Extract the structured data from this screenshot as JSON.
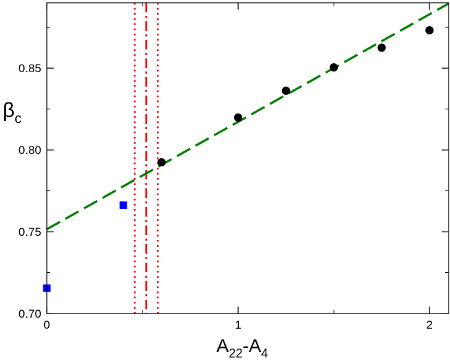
{
  "chart_data": {
    "type": "scatter",
    "xlabel": "A22-A4",
    "xlabel_parts": {
      "base1": "A",
      "sub1": "22",
      "mid": "-A",
      "sub2": "4"
    },
    "ylabel": "βc",
    "ylabel_parts": {
      "base": "β",
      "sub": "c"
    },
    "xlim": [
      0,
      2.1
    ],
    "ylim": [
      0.7,
      0.89
    ],
    "xticks": [
      {
        "value": 0,
        "label": "0"
      },
      {
        "value": 1,
        "label": "1"
      },
      {
        "value": 2,
        "label": "2"
      }
    ],
    "yticks": [
      {
        "value": 0.7,
        "label": "0.70"
      },
      {
        "value": 0.75,
        "label": "0.75"
      },
      {
        "value": 0.8,
        "label": "0.80"
      },
      {
        "value": 0.85,
        "label": "0.85"
      }
    ],
    "grid": false,
    "legend": "none",
    "series": [
      {
        "marker": "circle",
        "color": "#000000",
        "points": [
          {
            "x": 0.6,
            "y": 0.7925
          },
          {
            "x": 1.0,
            "y": 0.8198
          },
          {
            "x": 1.25,
            "y": 0.8362
          },
          {
            "x": 1.5,
            "y": 0.8505
          },
          {
            "x": 1.75,
            "y": 0.8625
          },
          {
            "x": 2.0,
            "y": 0.8732
          }
        ]
      },
      {
        "marker": "square",
        "color": "#0000ff",
        "points": [
          {
            "x": 0.0,
            "y": 0.7155
          },
          {
            "x": 0.4,
            "y": 0.7662
          }
        ]
      }
    ],
    "fit_line": {
      "style": "dashed",
      "color": "#008000",
      "x": [
        0,
        2.1
      ],
      "y": [
        0.7515,
        0.8895
      ]
    },
    "vertical_lines": [
      {
        "x": 0.46,
        "style": "dotted",
        "color": "#ff0000"
      },
      {
        "x": 0.52,
        "style": "dash-dot",
        "color": "#ff0000"
      },
      {
        "x": 0.58,
        "style": "dotted",
        "color": "#ff0000"
      }
    ]
  }
}
